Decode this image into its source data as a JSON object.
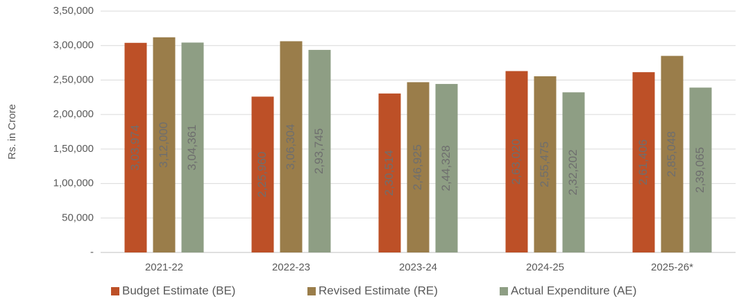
{
  "chart_data": {
    "type": "bar",
    "y_label": "Rs. in Crore",
    "categories": [
      "2021-22",
      "2022-23",
      "2023-24",
      "2024-25",
      "2025-26*"
    ],
    "series": [
      {
        "name": "Budget Estimate (BE)",
        "color": "#bd5027",
        "values": [
          303974,
          225960,
          230514,
          263020,
          261406
        ],
        "value_labels": [
          "3,03,974",
          "2,25,960",
          "2,30,514",
          "2,63,020",
          "2,61,406"
        ]
      },
      {
        "name": "Revised Estimate (RE)",
        "color": "#9a7d4a",
        "values": [
          312000,
          306304,
          246925,
          255475,
          285048
        ],
        "value_labels": [
          "3,12,000",
          "3,06,304",
          "2,46,925",
          "2,55,475",
          "2,85,048"
        ]
      },
      {
        "name": "Actual Expenditure (AE)",
        "color": "#8e9e84",
        "values": [
          304361,
          293745,
          244328,
          232202,
          239065
        ],
        "value_labels": [
          "3,04,361",
          "2,93,745",
          "2,44,328",
          "2,32,202",
          "2,39,065"
        ]
      }
    ],
    "ylim": [
      0,
      350000
    ],
    "yticks": [
      {
        "value": 0,
        "label": "-"
      },
      {
        "value": 50000,
        "label": "50,000"
      },
      {
        "value": 100000,
        "label": "1,00,000"
      },
      {
        "value": 150000,
        "label": "1,50,000"
      },
      {
        "value": 200000,
        "label": "2,00,000"
      },
      {
        "value": 250000,
        "label": "2,50,000"
      },
      {
        "value": 300000,
        "label": "3,00,000"
      },
      {
        "value": 350000,
        "label": "3,50,000"
      }
    ],
    "grid": true,
    "legend": "bottom"
  }
}
